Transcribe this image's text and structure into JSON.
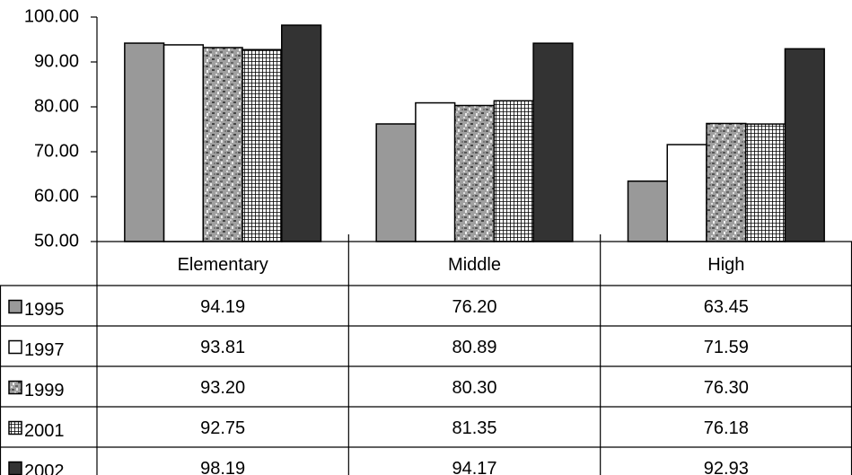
{
  "chart_data": {
    "type": "bar",
    "categories": [
      "Elementary",
      "Middle",
      "High"
    ],
    "series": [
      {
        "name": "1995",
        "color": "#999999",
        "values": [
          94.19,
          76.2,
          63.45
        ],
        "value_labels": [
          "94.19",
          "76.20",
          "63.45"
        ]
      },
      {
        "name": "1997",
        "color": "#ffffff",
        "values": [
          93.81,
          80.89,
          71.59
        ],
        "value_labels": [
          "93.81",
          "80.89",
          "71.59"
        ]
      },
      {
        "name": "1999",
        "color": "#9a9a9a",
        "pattern": "granite",
        "values": [
          93.2,
          80.3,
          76.3
        ],
        "value_labels": [
          "93.20",
          "80.30",
          "76.30"
        ]
      },
      {
        "name": "2001",
        "color": "#ffffff",
        "pattern": "grid",
        "values": [
          92.75,
          81.35,
          76.18
        ],
        "value_labels": [
          "92.75",
          "81.35",
          "76.18"
        ]
      },
      {
        "name": "2002",
        "color": "#333333",
        "values": [
          98.19,
          94.17,
          92.93
        ],
        "value_labels": [
          "98.19",
          "94.17",
          "92.93"
        ]
      }
    ],
    "ylim": [
      50,
      100
    ],
    "yticks": [
      {
        "value": 50,
        "label": "50.00"
      },
      {
        "value": 60,
        "label": "60.00"
      },
      {
        "value": 70,
        "label": "70.00"
      },
      {
        "value": 80,
        "label": "80.00"
      },
      {
        "value": 90,
        "label": "90.00"
      },
      {
        "value": 100,
        "label": "100.00"
      }
    ],
    "data_table": true
  }
}
